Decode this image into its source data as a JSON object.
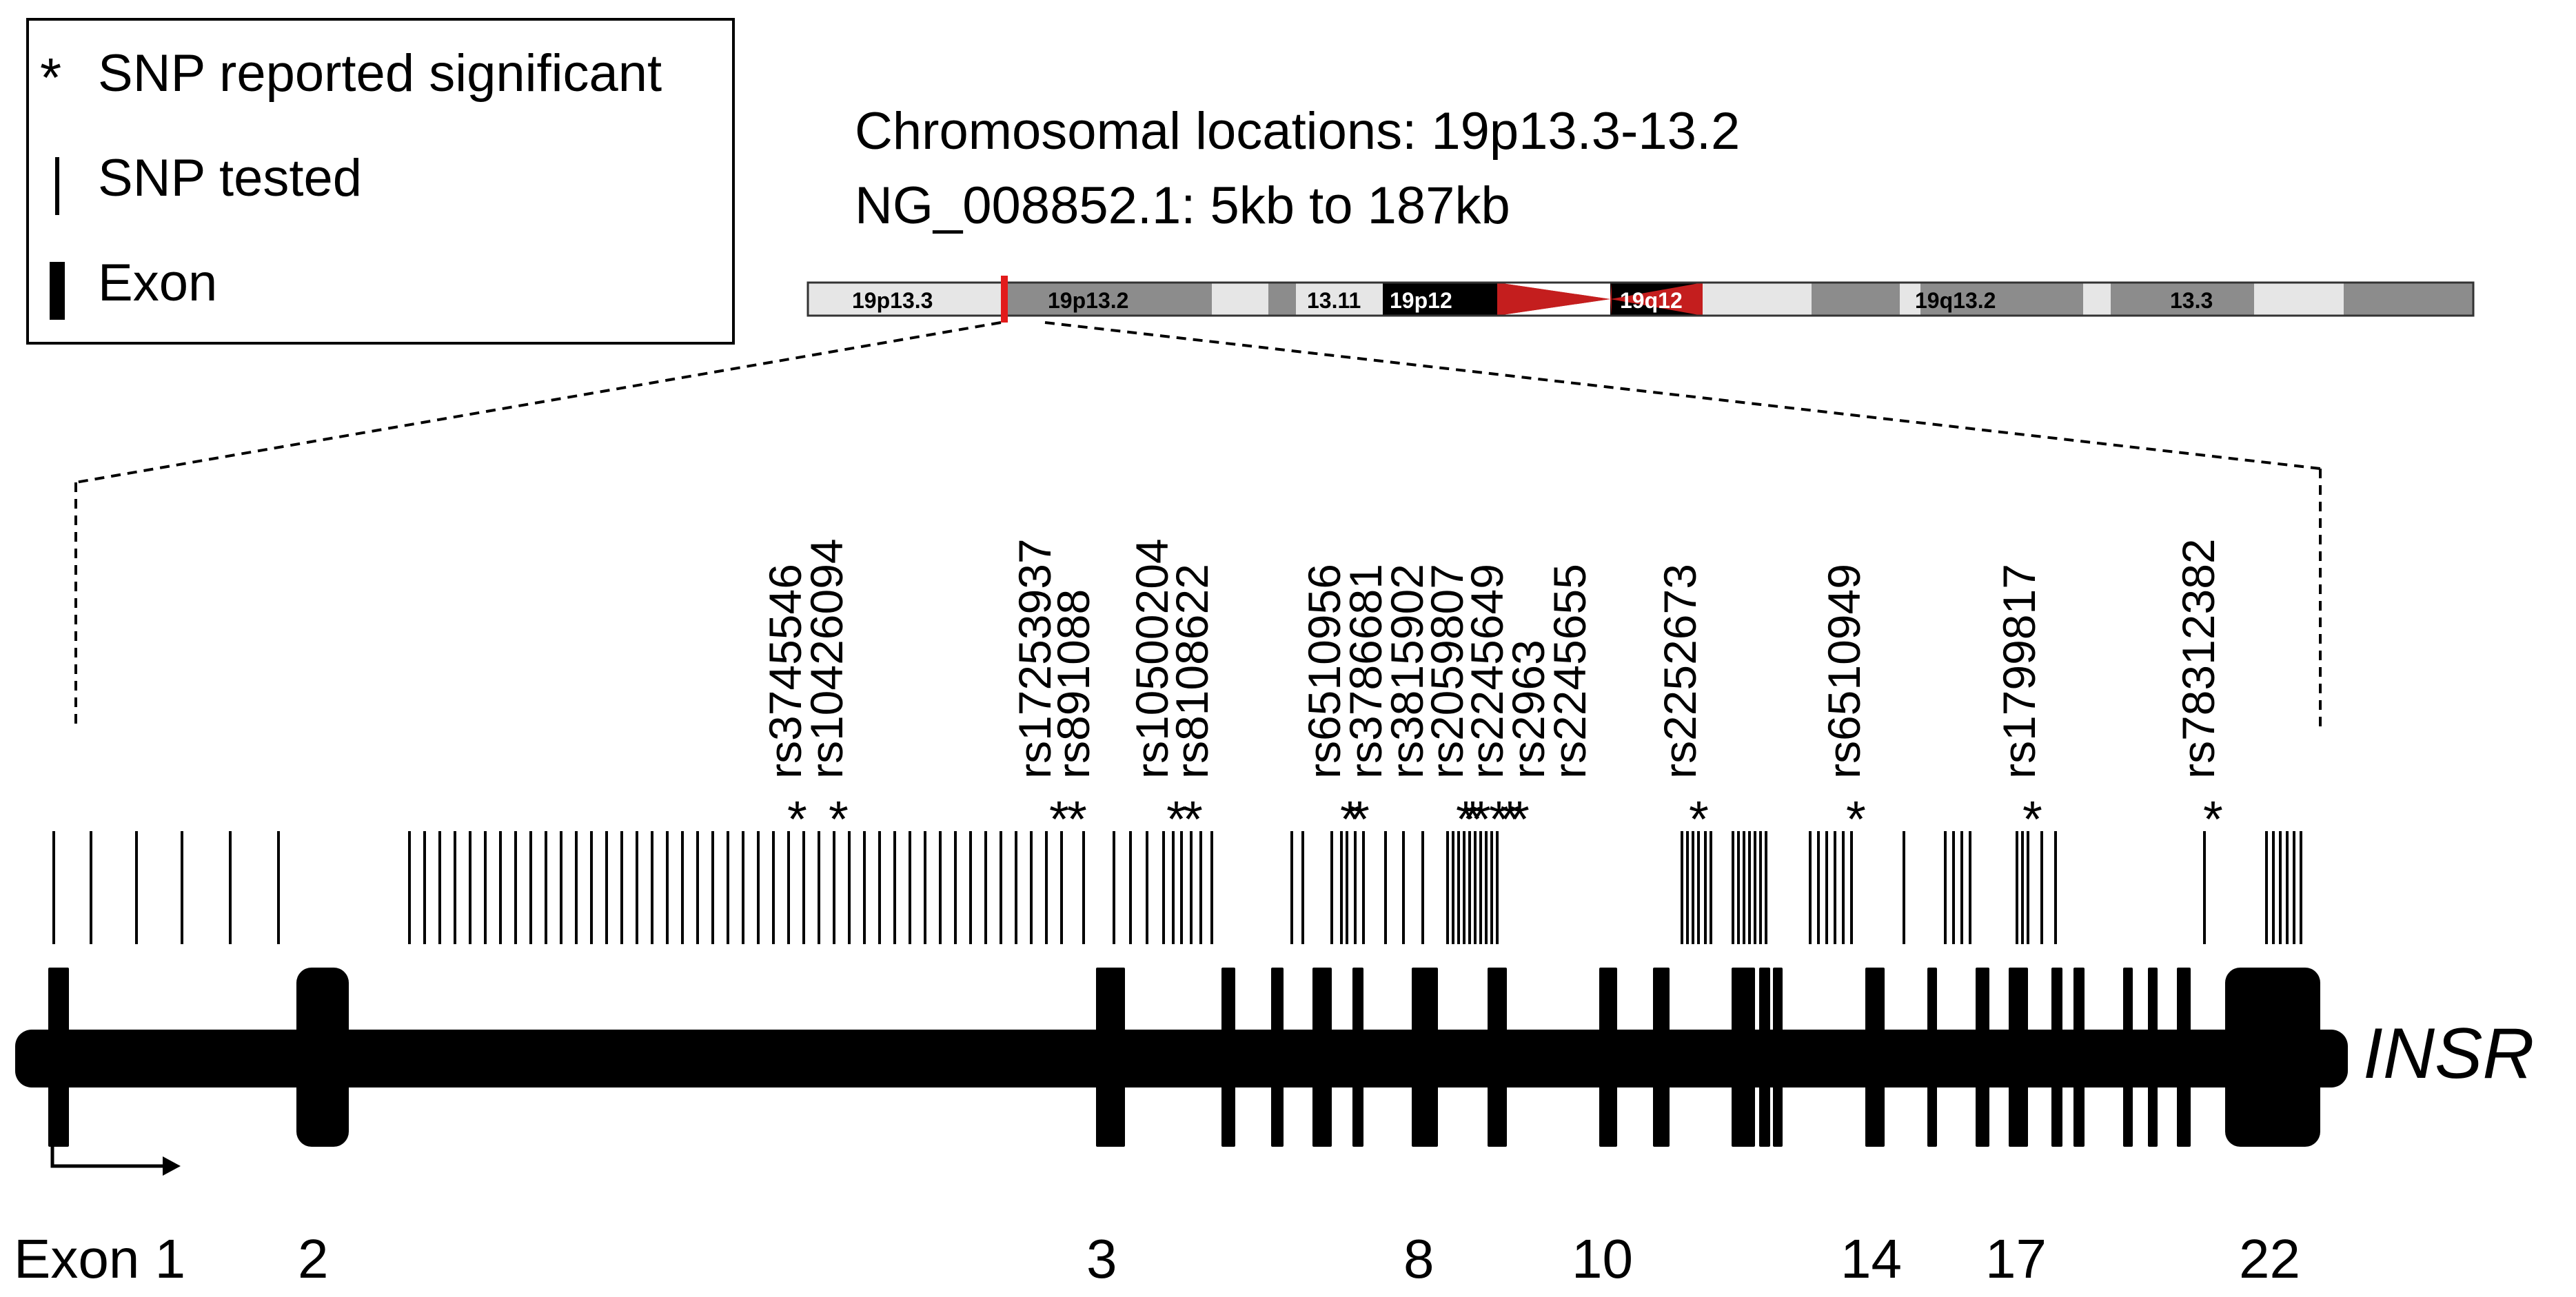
{
  "legend": {
    "snp_significant": "SNP reported significant",
    "snp_tested": "SNP tested",
    "exon": "Exon",
    "asterisk": "*"
  },
  "header": {
    "chromosomal_locations": "Chromosomal locations: 19p13.3-13.2",
    "refseq_range": "NG_008852.1: 5kb to 187kb"
  },
  "ideogram": {
    "bands": [
      "19p13.3",
      "19p13.2",
      "13.11",
      "19p12",
      "19q12",
      "19q13.2",
      "13.3"
    ],
    "colors": {
      "light": "#e6e6e6",
      "mid": "#8c8c8c",
      "dark": "#000000",
      "centromere": "#c41e1e",
      "highlight": "#e21b1b"
    }
  },
  "snp_labels": [
    "rs3745546",
    "rs10426094",
    "rs17253937",
    "rs891088",
    "rs10500204",
    "rs8108622",
    "rs6510956",
    "rs3786681",
    "rs3815902",
    "rs2059807",
    "rs2245649",
    "rs2963",
    "rs2245655",
    "rs2252673",
    "rs6510949",
    "rs1799817",
    "rs78312382"
  ],
  "gene": {
    "name": "INSR",
    "exon_labels": [
      "Exon 1",
      "2",
      "3",
      "8",
      "10",
      "14",
      "17",
      "22"
    ]
  }
}
